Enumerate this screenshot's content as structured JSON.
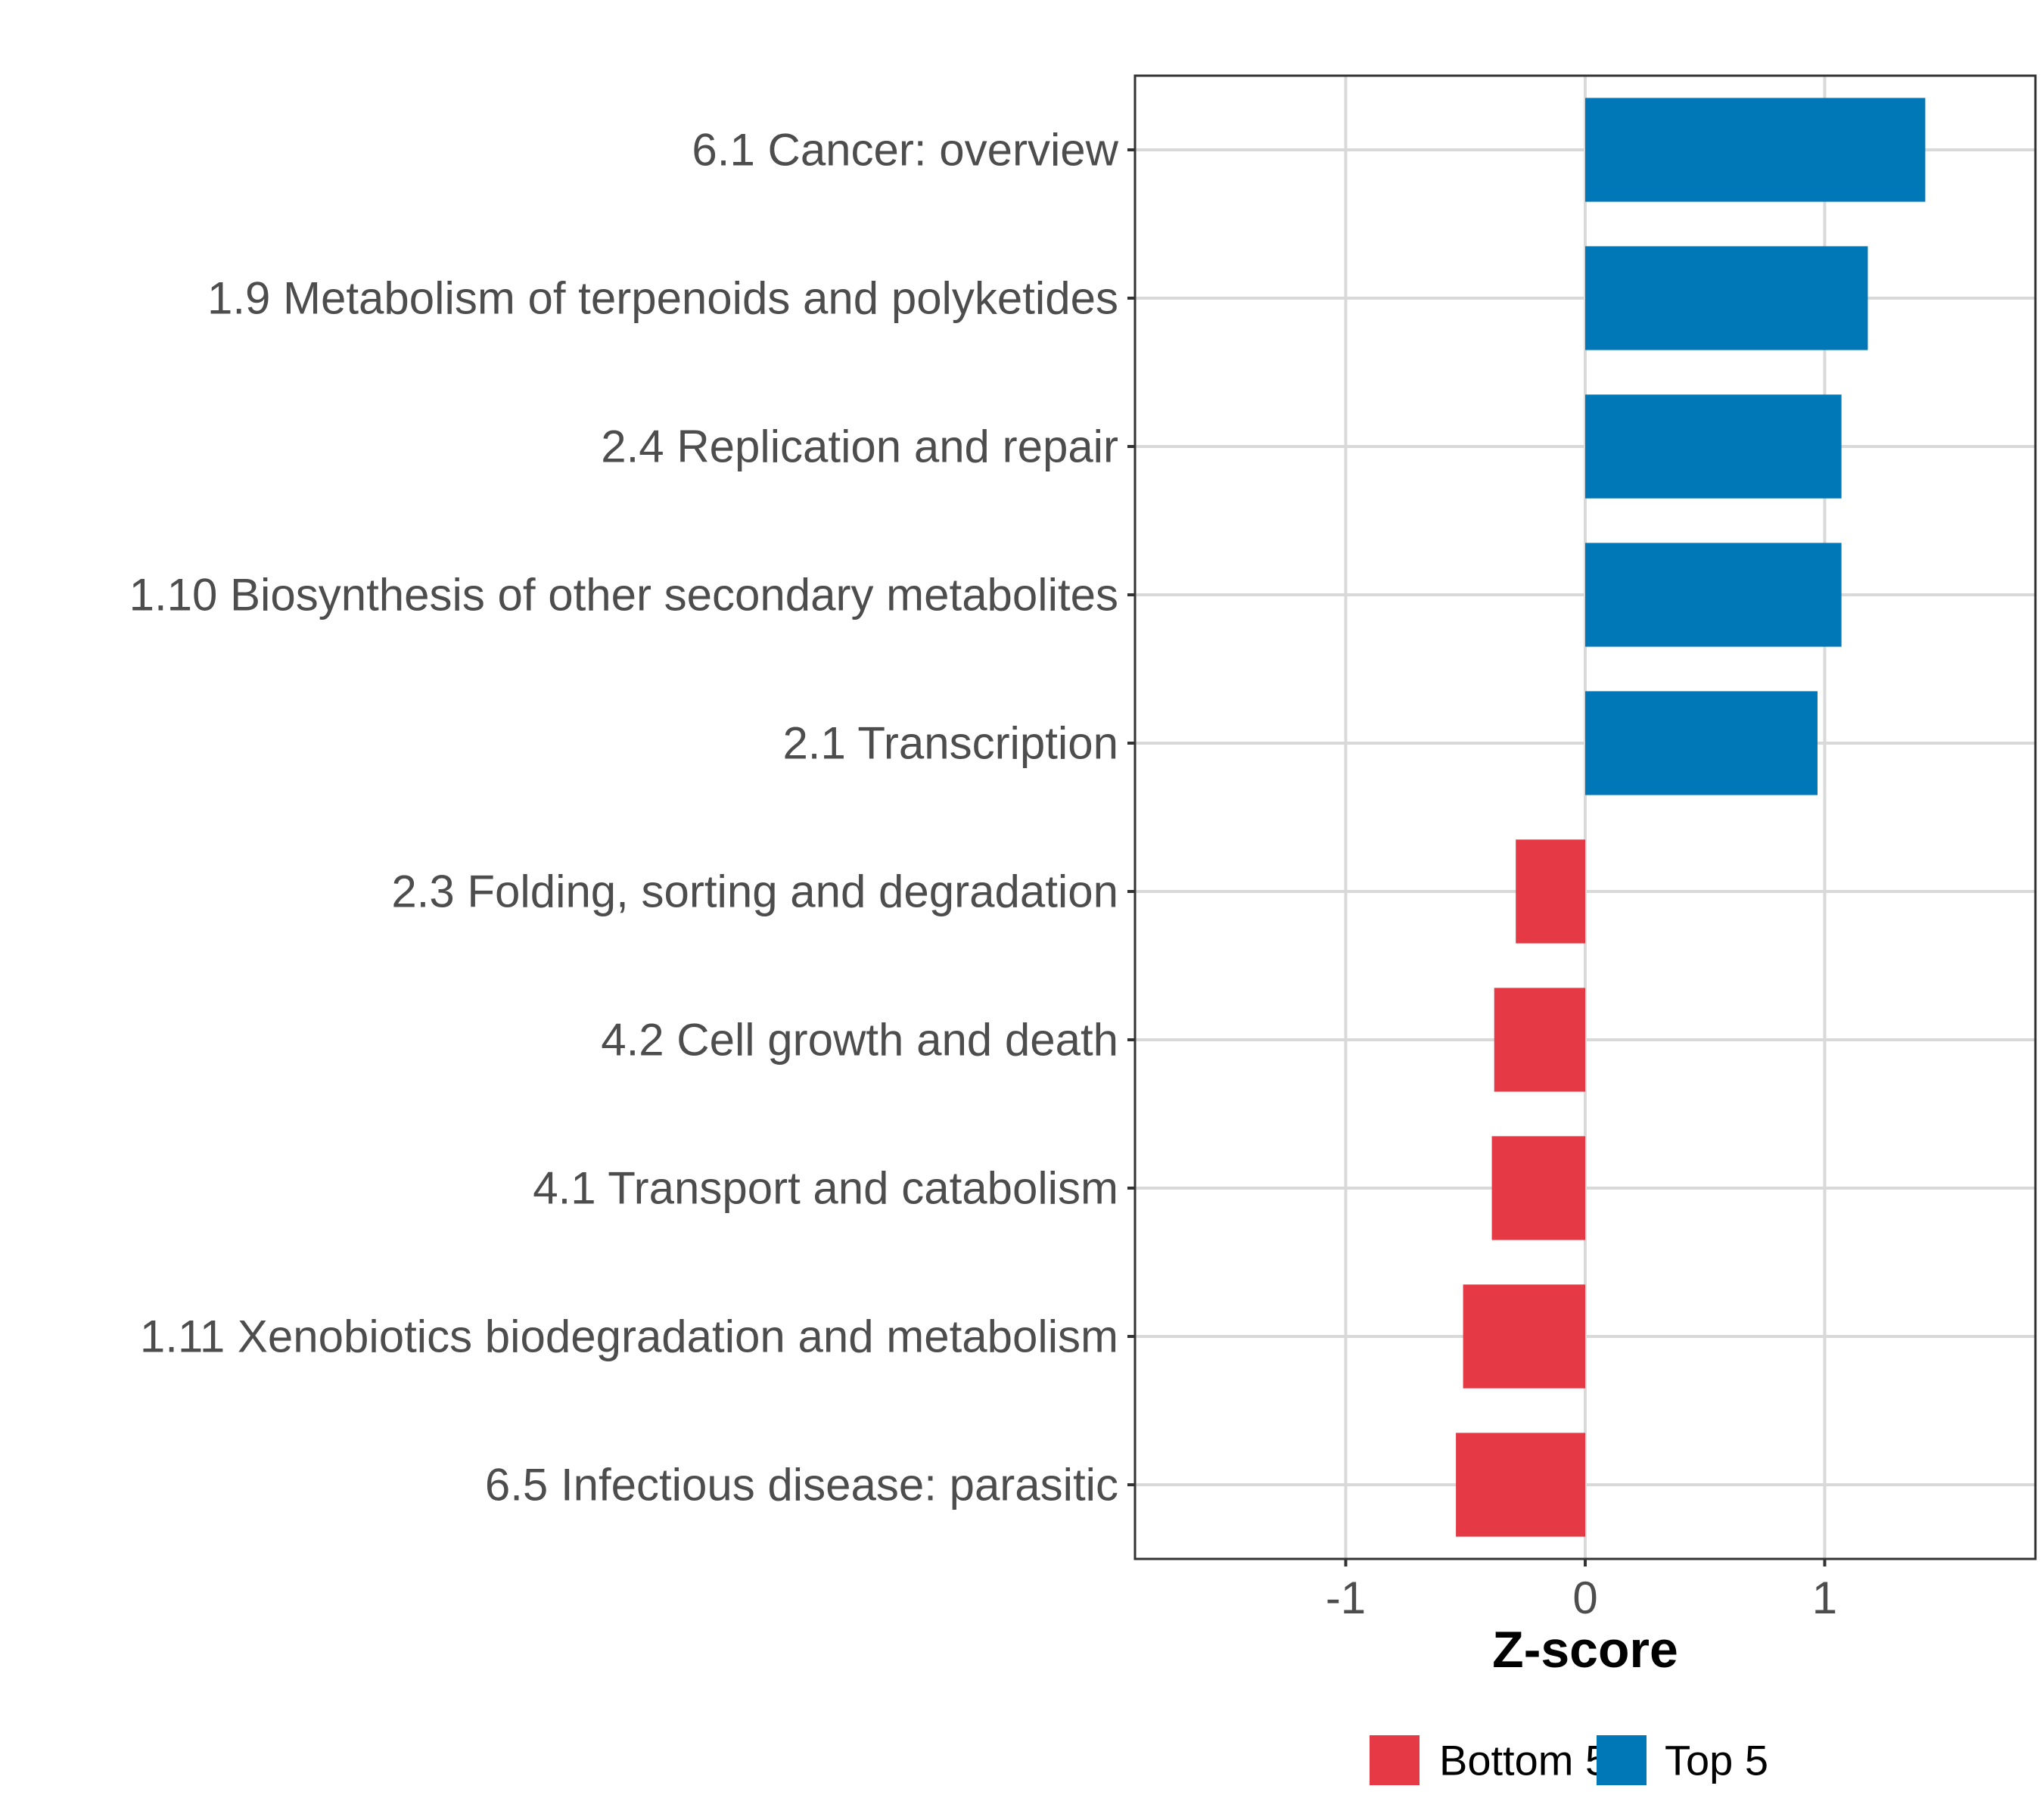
{
  "chart_data": {
    "type": "bar",
    "orientation": "horizontal",
    "categories": [
      "6.1 Cancer: overview",
      "1.9 Metabolism of terpenoids and polyketides",
      "2.4 Replication and repair",
      "1.10 Biosynthesis of other secondary metabolites",
      "2.1 Transcription",
      "2.3 Folding, sorting and degradation",
      "4.2 Cell growth and death",
      "4.1 Transport and catabolism",
      "1.11 Xenobiotics biodegradation and metabolism",
      "6.5 Infectious disease: parasitic"
    ],
    "values": [
      1.42,
      1.18,
      1.07,
      1.07,
      0.97,
      -0.29,
      -0.38,
      -0.39,
      -0.51,
      -0.54
    ],
    "groups": [
      "Top 5",
      "Top 5",
      "Top 5",
      "Top 5",
      "Top 5",
      "Bottom 5",
      "Bottom 5",
      "Bottom 5",
      "Bottom 5",
      "Bottom 5"
    ],
    "xlabel": "Z-score",
    "ylabel": "",
    "xlim": [
      -1.88,
      1.88
    ],
    "xticks": [
      -1,
      0,
      1
    ],
    "xtick_labels": [
      "-1",
      "0",
      "1"
    ],
    "grid": true,
    "legend": {
      "placement": "bottom",
      "entries": [
        {
          "label": "Bottom 5",
          "color": "#e63946"
        },
        {
          "label": "Top 5",
          "color": "#0077b6"
        }
      ]
    },
    "colors": {
      "Bottom 5": "#e63946",
      "Top 5": "#0077b6"
    }
  }
}
